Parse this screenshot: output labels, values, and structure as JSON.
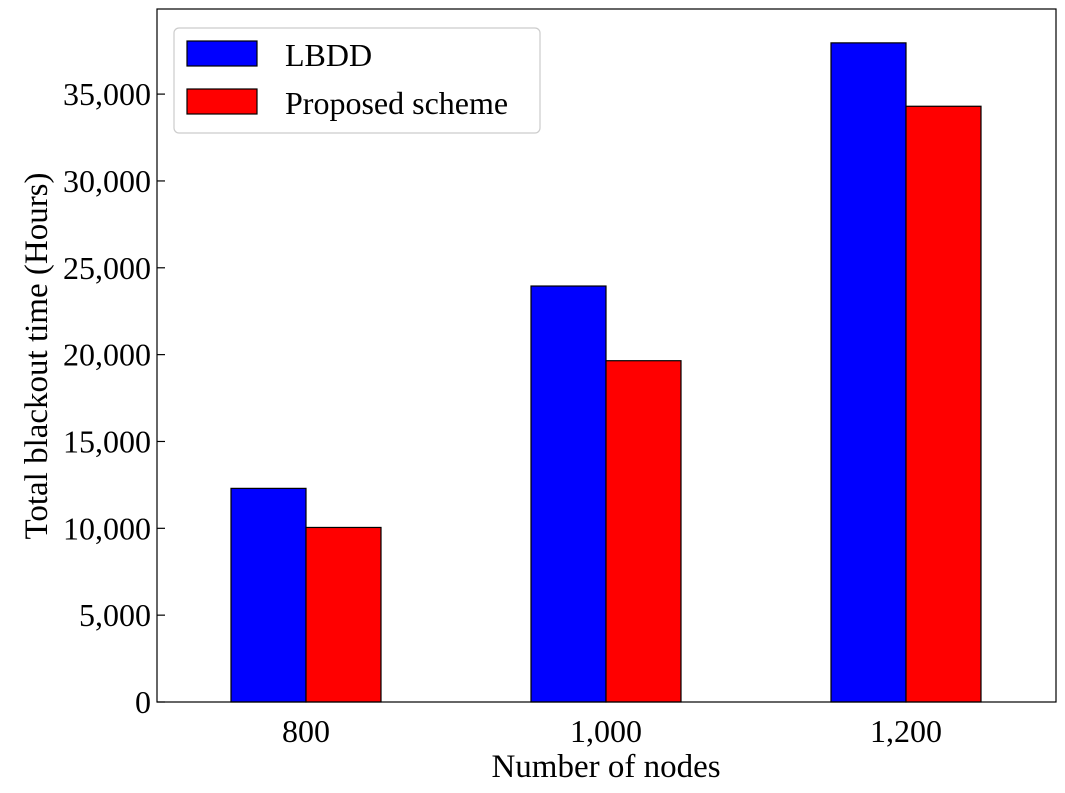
{
  "chart_data": {
    "type": "bar",
    "xlabel": "Number of nodes",
    "ylabel": "Total blackout time (Hours)",
    "categories": [
      "800",
      "1,000",
      "1,200"
    ],
    "series": [
      {
        "name": "LBDD",
        "color": "#0000ff",
        "values": [
          12300,
          23950,
          37950
        ]
      },
      {
        "name": "Proposed scheme",
        "color": "#ff0000",
        "values": [
          10050,
          19650,
          34300
        ]
      }
    ],
    "ylim": [
      0,
      40000
    ],
    "yticks": [
      0,
      5000,
      10000,
      15000,
      20000,
      25000,
      30000,
      35000
    ],
    "ytick_labels": [
      "0",
      "5,000",
      "10,000",
      "15,000",
      "20,000",
      "25,000",
      "30,000",
      "35,000"
    ],
    "grid": false,
    "legend_position": "top-left",
    "bar_edge_color": "#000000"
  }
}
